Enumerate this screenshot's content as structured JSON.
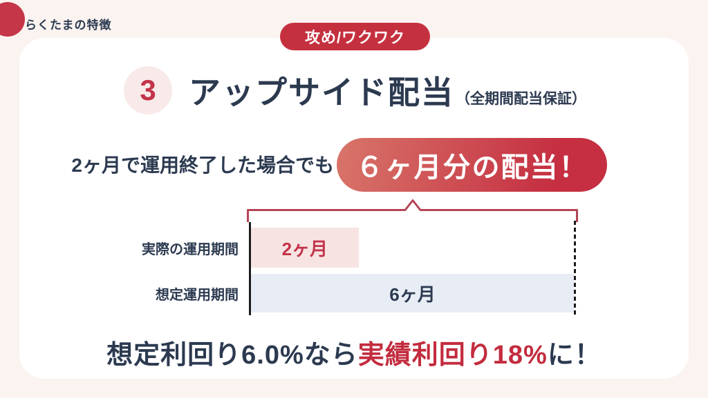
{
  "header": {
    "label": "らくたまの特徴",
    "badge": "攻め/ワクワク"
  },
  "feature": {
    "number": "3",
    "title": "アップサイド配当",
    "title_note": "（全期間配当保証）",
    "lead": "2ヶ月で運用終了した場合でも",
    "highlight": "６ヶ月分の配当！"
  },
  "footer": {
    "prefix": "想定利回り6.0%なら",
    "highlight": "実績利回り18%",
    "suffix": "に！"
  },
  "chart_data": {
    "type": "bar",
    "orientation": "horizontal",
    "categories": [
      "実際の運用期間",
      "想定運用期間"
    ],
    "values": [
      2,
      6
    ],
    "bar_labels": [
      "2ヶ月",
      "6ヶ月"
    ],
    "unit": "ヶ月",
    "xlim": [
      0,
      6
    ],
    "grid": false,
    "legend": false,
    "annotation": "bracket spans full 6-month width and points up to highlight pill"
  },
  "colors": {
    "background": "#faf3f0",
    "card": "#ffffff",
    "accent_red": "#c5303f",
    "navy_text": "#2c3a50",
    "bar_pink": "#f7e4e2",
    "bar_blue": "#e8edf5",
    "number_circle_pink": "#f9eaea",
    "pill_gradient_start": "#d8756a",
    "pill_gradient_end": "#c52f41",
    "bracket_red": "#b54455"
  }
}
